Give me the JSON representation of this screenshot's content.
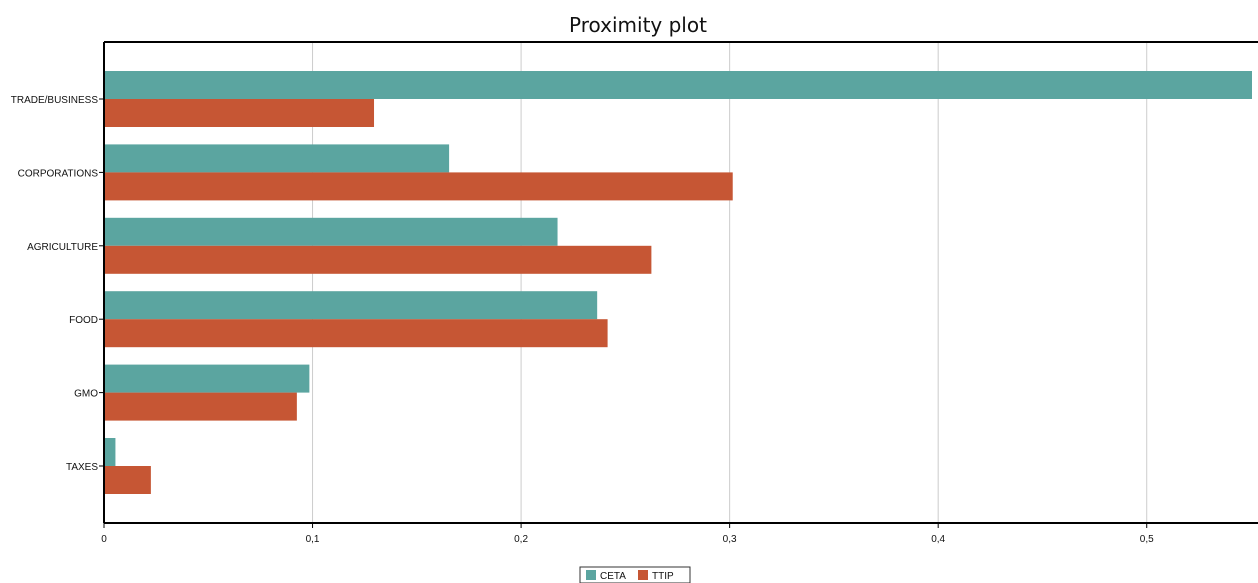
{
  "chart_data": {
    "type": "bar",
    "orientation": "horizontal",
    "title": "Proximity plot",
    "xlabel": "",
    "ylabel": "",
    "categories": [
      "TRADE/BUSINESS",
      "CORPORATIONS",
      "AGRICULTURE",
      "FOOD",
      "GMO",
      "TAXES"
    ],
    "series": [
      {
        "name": "CETA",
        "color": "#5ba5a0",
        "values": [
          0.55,
          0.165,
          0.217,
          0.236,
          0.098,
          0.005
        ]
      },
      {
        "name": "TTIP",
        "color": "#c65634",
        "values": [
          0.129,
          0.301,
          0.262,
          0.241,
          0.092,
          0.022
        ]
      }
    ],
    "xlim": [
      0,
      0.55
    ],
    "xticks": [
      0,
      0.1,
      0.2,
      0.3,
      0.4,
      0.5
    ],
    "xtick_labels": [
      "0",
      "0,1",
      "0,2",
      "0,3",
      "0,4",
      "0,5"
    ],
    "grid": "vertical",
    "legend_position": "bottom-center"
  }
}
